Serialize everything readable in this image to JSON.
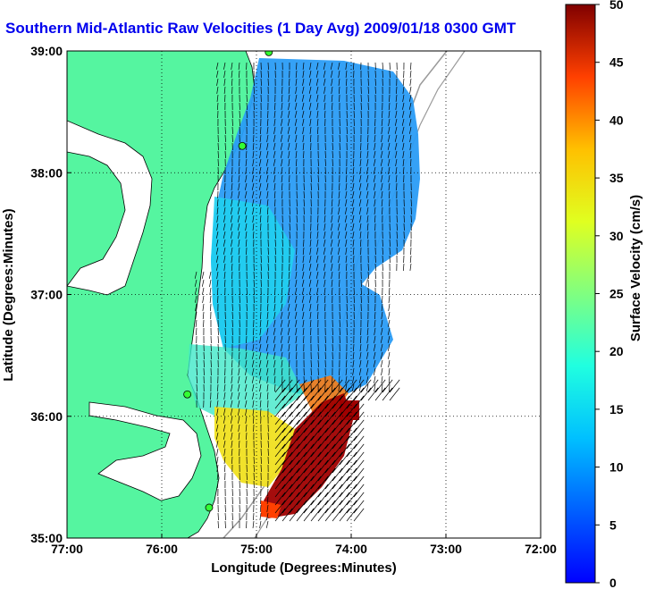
{
  "title": "Southern Mid-Atlantic Raw Velocities (1 Day Avg) 2009/01/18 0300 GMT",
  "map": {
    "x_label": "Longitude (Degrees:Minutes)",
    "y_label": "Latitude (Degrees:Minutes)",
    "x_ticks": [
      "77:00",
      "76:00",
      "75:00",
      "74:00",
      "73:00",
      "72:00"
    ],
    "y_ticks": [
      "39:00",
      "38:00",
      "37:00",
      "36:00",
      "35:00"
    ],
    "x_range": [
      -77,
      -72
    ],
    "y_range": [
      35,
      39
    ],
    "grid": "dotted",
    "land_color": "#55f5a0",
    "water_color": "#ffffff"
  },
  "colorbar": {
    "label": "Surface Velocity (cm/s)",
    "ticks": [
      "50",
      "45",
      "40",
      "35",
      "30",
      "25",
      "20",
      "15",
      "10",
      "5",
      "0"
    ],
    "range": [
      0,
      50
    ],
    "palette": "jet"
  },
  "stations": [
    {
      "lon": -74.87,
      "lat": 38.99
    },
    {
      "lon": -75.15,
      "lat": 38.22
    },
    {
      "lon": -75.73,
      "lat": 36.18
    },
    {
      "lon": -75.5,
      "lat": 35.25
    }
  ]
}
